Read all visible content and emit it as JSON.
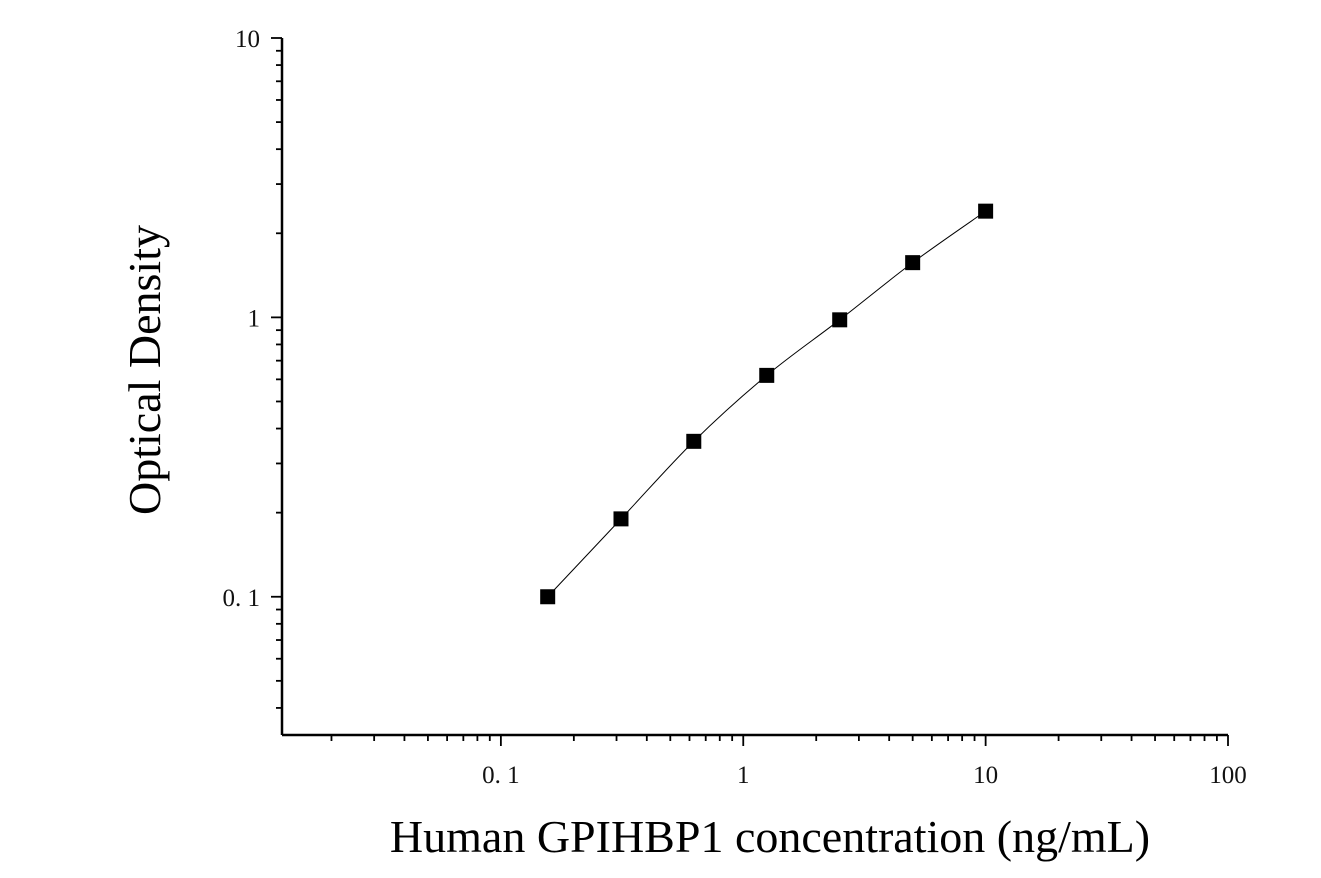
{
  "chart_data": {
    "type": "scatter",
    "xlabel": "Human GPIHBP1 concentration (ng/mL)",
    "ylabel": "Optical Density",
    "xscale": "log",
    "yscale": "log",
    "xlim": [
      0.0125,
      100
    ],
    "ylim": [
      0.032,
      10
    ],
    "x_ticks": [
      {
        "value": 0.1,
        "label": "0. 1"
      },
      {
        "value": 1,
        "label": "1"
      },
      {
        "value": 10,
        "label": "10"
      },
      {
        "value": 100,
        "label": "100"
      }
    ],
    "y_ticks": [
      {
        "value": 0.1,
        "label": "0. 1"
      },
      {
        "value": 1,
        "label": "1"
      },
      {
        "value": 10,
        "label": "10"
      }
    ],
    "grid": false,
    "legend": "none",
    "marker_color": "#000000",
    "series": [
      {
        "marker": "square",
        "fit_line": true,
        "x": [
          0.156,
          0.313,
          0.625,
          1.25,
          2.5,
          5,
          10
        ],
        "y": [
          0.1,
          0.19,
          0.36,
          0.62,
          0.98,
          1.57,
          2.4
        ]
      }
    ]
  }
}
